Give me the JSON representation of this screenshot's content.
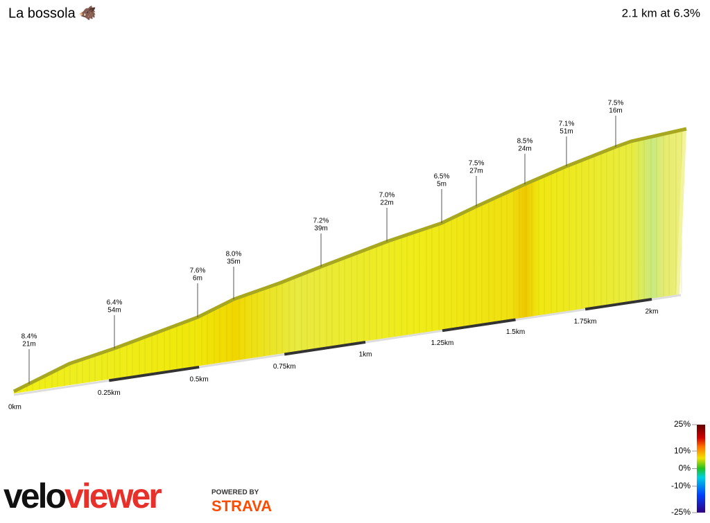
{
  "chart_data": {
    "type": "profile",
    "title": "La bossola 🐗",
    "summary": "2.1 km at 6.3%",
    "xticks": [
      {
        "value": 0,
        "label": "0km"
      },
      {
        "value": 0.25,
        "label": "0.25km"
      },
      {
        "value": 0.5,
        "label": "0.5km"
      },
      {
        "value": 0.75,
        "label": "0.75km"
      },
      {
        "value": 1,
        "label": "1km"
      },
      {
        "value": 1.25,
        "label": "1.25km"
      },
      {
        "value": 1.5,
        "label": "1.5km"
      },
      {
        "value": 1.75,
        "label": "1.75km"
      },
      {
        "value": 2,
        "label": "2km"
      }
    ],
    "annotations": [
      {
        "grade": "8.4%",
        "length": "21m"
      },
      {
        "grade": "6.4%",
        "length": "54m"
      },
      {
        "grade": "7.6%",
        "length": "6m"
      },
      {
        "grade": "8.0%",
        "length": "35m"
      },
      {
        "grade": "7.2%",
        "length": "39m"
      },
      {
        "grade": "7.0%",
        "length": "22m"
      },
      {
        "grade": "6.5%",
        "length": "5m"
      },
      {
        "grade": "7.5%",
        "length": "27m"
      },
      {
        "grade": "8.5%",
        "length": "24m"
      },
      {
        "grade": "7.1%",
        "length": "51m"
      },
      {
        "grade": "7.5%",
        "length": "16m"
      }
    ],
    "colorbar": {
      "lim": [
        -25,
        25
      ],
      "ticks": [
        {
          "value": 25,
          "label": "25%"
        },
        {
          "value": 10,
          "label": "10%"
        },
        {
          "value": 0,
          "label": "0%"
        },
        {
          "value": -10,
          "label": "-10%"
        },
        {
          "value": -25,
          "label": "-25%"
        }
      ]
    },
    "logo": {
      "part1": "velo",
      "part2": "viewer",
      "powered": "POWERED BY",
      "strava": "STRAVA"
    }
  }
}
